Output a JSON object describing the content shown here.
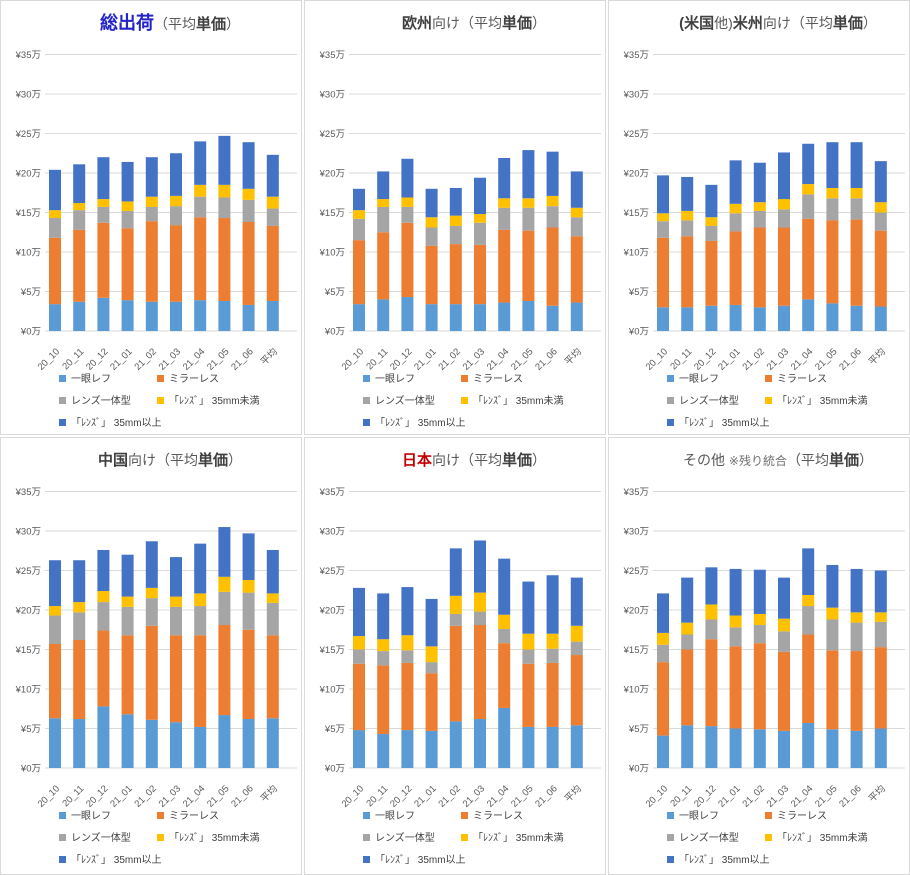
{
  "page": {
    "description_labels": {
      "unit_note": "万"
    }
  },
  "chart_data": {
    "type": "bar",
    "stacked": true,
    "unit": "万円 (¥10,000)",
    "grid": "on",
    "legend_position": "bottom",
    "categories": [
      "20_10",
      "20_11",
      "20_12",
      "21_01",
      "21_02",
      "21_03",
      "21_04",
      "21_05",
      "21_06",
      "平均"
    ],
    "y_axis": {
      "min": 0,
      "max": 35,
      "step": 5,
      "ticks": [
        "¥0万",
        "¥5万",
        "¥10万",
        "¥15万",
        "¥20万",
        "¥25万",
        "¥30万",
        "¥35万"
      ]
    },
    "series_names": [
      "一眼レフ",
      "ミラーレス",
      "レンズ一体型",
      "「ﾚﾝｽﾞ」 35mm未満",
      "「ﾚﾝｽﾞ」 35mm以上"
    ],
    "series_colors": [
      "#5B9BD5",
      "#ED7D31",
      "#A5A5A5",
      "#FFC000",
      "#4472C4"
    ],
    "colors": {
      "gridline": "#D9D9D9",
      "axis_text": "#595959",
      "legend_text": "#404040",
      "title_blue": "#2323C8",
      "title_red": "#C00000",
      "title_gray": "#595959"
    },
    "charts": [
      {
        "name": "total-shipments",
        "title": "総出荷（平均単価）",
        "title_parts": [
          {
            "text": "総出荷",
            "style": "blue-em"
          },
          {
            "text": "（平均",
            "style": "normal"
          },
          {
            "text": "単価",
            "style": "em"
          },
          {
            "text": "）",
            "style": "normal"
          }
        ],
        "series": [
          {
            "name": "一眼レフ",
            "values": [
              3.4,
              3.7,
              4.2,
              3.9,
              3.7,
              3.7,
              3.9,
              3.8,
              3.3,
              3.8
            ]
          },
          {
            "name": "ミラーレス",
            "values": [
              8.4,
              9.1,
              9.5,
              9.1,
              10.2,
              9.7,
              10.5,
              10.5,
              10.5,
              9.5
            ]
          },
          {
            "name": "レンズ一体型",
            "values": [
              2.5,
              2.5,
              2.0,
              2.2,
              1.8,
              2.4,
              2.6,
              2.6,
              2.8,
              2.2
            ]
          },
          {
            "name": "「ﾚﾝｽﾞ」 35mm未満",
            "values": [
              1.0,
              0.9,
              1.0,
              1.2,
              1.3,
              1.3,
              1.5,
              1.6,
              1.4,
              1.5
            ]
          },
          {
            "name": "「ﾚﾝｽﾞ」 35mm以上",
            "values": [
              5.1,
              4.9,
              5.3,
              5.0,
              5.0,
              5.4,
              5.5,
              6.2,
              5.9,
              5.3
            ]
          }
        ]
      },
      {
        "name": "europe",
        "title": "欧州向け（平均単価）",
        "title_parts": [
          {
            "text": "欧州",
            "style": "em"
          },
          {
            "text": "向け",
            "style": "normal"
          },
          {
            "text": "（平均",
            "style": "normal"
          },
          {
            "text": "単価",
            "style": "em"
          },
          {
            "text": "）",
            "style": "normal"
          }
        ],
        "series": [
          {
            "name": "一眼レフ",
            "values": [
              3.4,
              4.0,
              4.3,
              3.4,
              3.4,
              3.4,
              3.6,
              3.8,
              3.2,
              3.6
            ]
          },
          {
            "name": "ミラーレス",
            "values": [
              8.1,
              8.5,
              9.4,
              7.4,
              7.6,
              7.5,
              9.2,
              8.9,
              9.9,
              8.4
            ]
          },
          {
            "name": "レンズ一体型",
            "values": [
              2.7,
              3.2,
              2.0,
              2.3,
              2.3,
              2.8,
              2.8,
              2.9,
              2.7,
              2.4
            ]
          },
          {
            "name": "「ﾚﾝｽﾞ」 35mm未満",
            "values": [
              1.1,
              1.0,
              1.2,
              1.3,
              1.3,
              1.1,
              1.2,
              1.2,
              1.3,
              1.2
            ]
          },
          {
            "name": "「ﾚﾝｽﾞ」 35mm以上",
            "values": [
              2.7,
              3.5,
              4.9,
              3.6,
              3.5,
              4.6,
              5.1,
              6.1,
              5.6,
              4.6
            ]
          }
        ]
      },
      {
        "name": "americas",
        "title": "(米国他)米州向け（平均単価）",
        "title_parts": [
          {
            "text": "(米国",
            "style": "em"
          },
          {
            "text": "他)",
            "style": "normal"
          },
          {
            "text": "米州",
            "style": "em"
          },
          {
            "text": "向け",
            "style": "normal"
          },
          {
            "text": "（平均",
            "style": "normal"
          },
          {
            "text": "単価",
            "style": "em"
          },
          {
            "text": "）",
            "style": "normal"
          }
        ],
        "series": [
          {
            "name": "一眼レフ",
            "values": [
              3.0,
              3.0,
              3.2,
              3.3,
              3.0,
              3.2,
              4.0,
              3.5,
              3.2,
              3.1
            ]
          },
          {
            "name": "ミラーレス",
            "values": [
              8.8,
              9.0,
              8.2,
              9.3,
              10.1,
              9.9,
              10.2,
              10.5,
              10.9,
              9.6
            ]
          },
          {
            "name": "レンズ一体型",
            "values": [
              2.1,
              2.0,
              1.9,
              2.3,
              2.1,
              2.3,
              3.1,
              2.8,
              2.7,
              2.3
            ]
          },
          {
            "name": "「ﾚﾝｽﾞ」 35mm未満",
            "values": [
              1.0,
              1.2,
              1.1,
              1.2,
              1.1,
              1.3,
              1.3,
              1.3,
              1.3,
              1.3
            ]
          },
          {
            "name": "「ﾚﾝｽﾞ」 35mm以上",
            "values": [
              4.8,
              4.3,
              4.1,
              5.5,
              5.0,
              5.9,
              5.1,
              5.8,
              5.8,
              5.2
            ]
          }
        ]
      },
      {
        "name": "china",
        "title": "中国向け（平均単価）",
        "title_parts": [
          {
            "text": "中国",
            "style": "em"
          },
          {
            "text": "向け",
            "style": "normal"
          },
          {
            "text": "（平均",
            "style": "normal"
          },
          {
            "text": "単価",
            "style": "em"
          },
          {
            "text": "）",
            "style": "normal"
          }
        ],
        "series": [
          {
            "name": "一眼レフ",
            "values": [
              6.3,
              6.2,
              7.8,
              6.8,
              6.1,
              5.8,
              5.2,
              6.7,
              6.2,
              6.3
            ]
          },
          {
            "name": "ミラーレス",
            "values": [
              9.4,
              10.0,
              9.6,
              10.0,
              11.9,
              11.0,
              11.6,
              11.4,
              11.3,
              10.5
            ]
          },
          {
            "name": "レンズ一体型",
            "values": [
              3.6,
              3.5,
              3.6,
              3.6,
              3.5,
              3.6,
              3.7,
              4.2,
              4.7,
              4.1
            ]
          },
          {
            "name": "「ﾚﾝｽﾞ」 35mm未満",
            "values": [
              1.2,
              1.3,
              1.4,
              1.3,
              1.3,
              1.3,
              1.6,
              1.9,
              1.6,
              1.2
            ]
          },
          {
            "name": "「ﾚﾝｽﾞ」 35mm以上",
            "values": [
              5.8,
              5.3,
              5.2,
              5.3,
              5.9,
              5.0,
              6.3,
              6.3,
              5.9,
              5.5
            ]
          }
        ]
      },
      {
        "name": "japan",
        "title": "日本向け（平均単価）",
        "title_parts": [
          {
            "text": "日本",
            "style": "red-em"
          },
          {
            "text": "向け",
            "style": "normal"
          },
          {
            "text": "（平均",
            "style": "normal"
          },
          {
            "text": "単価",
            "style": "em"
          },
          {
            "text": "）",
            "style": "normal"
          }
        ],
        "series": [
          {
            "name": "一眼レフ",
            "values": [
              4.8,
              4.3,
              4.8,
              4.7,
              5.9,
              6.2,
              7.6,
              5.2,
              5.2,
              5.4
            ]
          },
          {
            "name": "ミラーレス",
            "values": [
              8.4,
              8.7,
              8.5,
              7.3,
              12.1,
              11.9,
              8.2,
              8.0,
              8.1,
              8.9
            ]
          },
          {
            "name": "レンズ一体型",
            "values": [
              1.8,
              1.8,
              1.6,
              1.4,
              1.5,
              1.7,
              1.8,
              1.8,
              1.8,
              1.7
            ]
          },
          {
            "name": "「ﾚﾝｽﾞ」 35mm未満",
            "values": [
              1.7,
              1.5,
              1.9,
              2.0,
              2.3,
              2.4,
              1.8,
              2.0,
              1.9,
              2.0
            ]
          },
          {
            "name": "「ﾚﾝｽﾞ」 35mm以上",
            "values": [
              6.1,
              5.8,
              6.1,
              6.0,
              6.0,
              6.6,
              7.1,
              6.6,
              7.4,
              6.1
            ]
          }
        ]
      },
      {
        "name": "others",
        "title": "その他 ※残り統合（平均単価）",
        "title_parts": [
          {
            "text": "その他 ",
            "style": "normal"
          },
          {
            "text": "※残り統合",
            "style": "small"
          },
          {
            "text": "（平均",
            "style": "normal"
          },
          {
            "text": "単価",
            "style": "em"
          },
          {
            "text": "）",
            "style": "normal"
          }
        ],
        "series": [
          {
            "name": "一眼レフ",
            "values": [
              4.1,
              5.4,
              5.3,
              5.0,
              4.9,
              4.7,
              5.7,
              4.9,
              4.7,
              5.0
            ]
          },
          {
            "name": "ミラーレス",
            "values": [
              9.3,
              9.6,
              11.0,
              10.4,
              10.9,
              10.0,
              11.2,
              10.0,
              10.1,
              10.3
            ]
          },
          {
            "name": "レンズ一体型",
            "values": [
              2.2,
              1.9,
              2.5,
              2.4,
              2.3,
              2.6,
              3.6,
              3.9,
              3.6,
              3.2
            ]
          },
          {
            "name": "「ﾚﾝｽﾞ」 35mm未満",
            "values": [
              1.5,
              1.5,
              1.9,
              1.5,
              1.4,
              1.6,
              1.4,
              1.5,
              1.3,
              1.2
            ]
          },
          {
            "name": "「ﾚﾝｽﾞ」 35mm以上",
            "values": [
              5.0,
              5.7,
              4.7,
              5.9,
              5.6,
              5.2,
              5.9,
              5.4,
              5.5,
              5.3
            ]
          }
        ]
      }
    ]
  }
}
